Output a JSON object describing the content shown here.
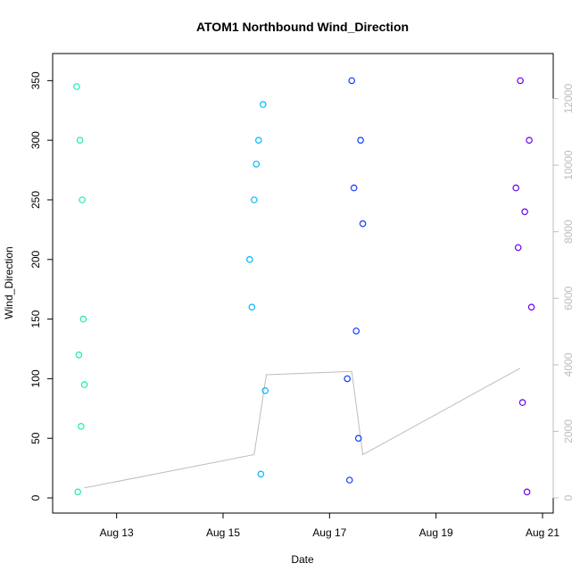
{
  "chart_data": {
    "type": "scatter",
    "title": "ATOM1 Northbound Wind_Direction",
    "xlabel": "Date",
    "ylabel": "Wind_Direction",
    "x_ticks": [
      {
        "date": "2023-08-13",
        "label": "Aug 13"
      },
      {
        "date": "2023-08-15",
        "label": "Aug 15"
      },
      {
        "date": "2023-08-17",
        "label": "Aug 17"
      },
      {
        "date": "2023-08-19",
        "label": "Aug 19"
      },
      {
        "date": "2023-08-21",
        "label": "Aug 21"
      }
    ],
    "xlim": [
      "2023-08-12T00:00",
      "2023-08-21T00:00"
    ],
    "ylim": [
      0,
      360
    ],
    "y_ticks": [
      0,
      50,
      100,
      150,
      200,
      250,
      300,
      350
    ],
    "y2lim": [
      0,
      12900
    ],
    "y2_ticks": [
      0,
      2000,
      4000,
      6000,
      8000,
      10000,
      12000
    ],
    "grid": false,
    "series": [
      {
        "color": "#1de9b6",
        "x": [
          "2023-08-12T06:00",
          "2023-08-12T06:30",
          "2023-08-12T07:00",
          "2023-08-12T07:30",
          "2023-08-12T08:00",
          "2023-08-12T08:30",
          "2023-08-12T09:00",
          "2023-08-12T09:30"
        ],
        "y": [
          345,
          5,
          120,
          300,
          60,
          250,
          150,
          95
        ]
      },
      {
        "color": "#00b8ff",
        "x": [
          "2023-08-15T12:00",
          "2023-08-15T13:00",
          "2023-08-15T14:00",
          "2023-08-15T15:00",
          "2023-08-15T16:00",
          "2023-08-15T17:00",
          "2023-08-15T18:00",
          "2023-08-15T19:00"
        ],
        "y": [
          200,
          160,
          250,
          280,
          300,
          20,
          330,
          90
        ]
      },
      {
        "color": "#0d3bff",
        "x": [
          "2023-08-17T08:00",
          "2023-08-17T09:00",
          "2023-08-17T10:00",
          "2023-08-17T11:00",
          "2023-08-17T12:00",
          "2023-08-17T13:00",
          "2023-08-17T14:00",
          "2023-08-17T15:00"
        ],
        "y": [
          100,
          15,
          350,
          260,
          140,
          50,
          300,
          230
        ]
      },
      {
        "color": "#6a00f0",
        "x": [
          "2023-08-20T12:00",
          "2023-08-20T13:00",
          "2023-08-20T14:00",
          "2023-08-20T15:00",
          "2023-08-20T16:00",
          "2023-08-20T17:00",
          "2023-08-20T18:00",
          "2023-08-20T19:00"
        ],
        "y": [
          260,
          210,
          350,
          80,
          240,
          5,
          300,
          160
        ]
      }
    ],
    "secondary_line": {
      "color": "#bdbdbd",
      "x": [
        "2023-08-12T09:30",
        "2023-08-15T14:00",
        "2023-08-15T19:30",
        "2023-08-17T10:00",
        "2023-08-17T15:00",
        "2023-08-20T14:00"
      ],
      "y": [
        300,
        1300,
        3700,
        3800,
        1300,
        3900
      ]
    }
  }
}
